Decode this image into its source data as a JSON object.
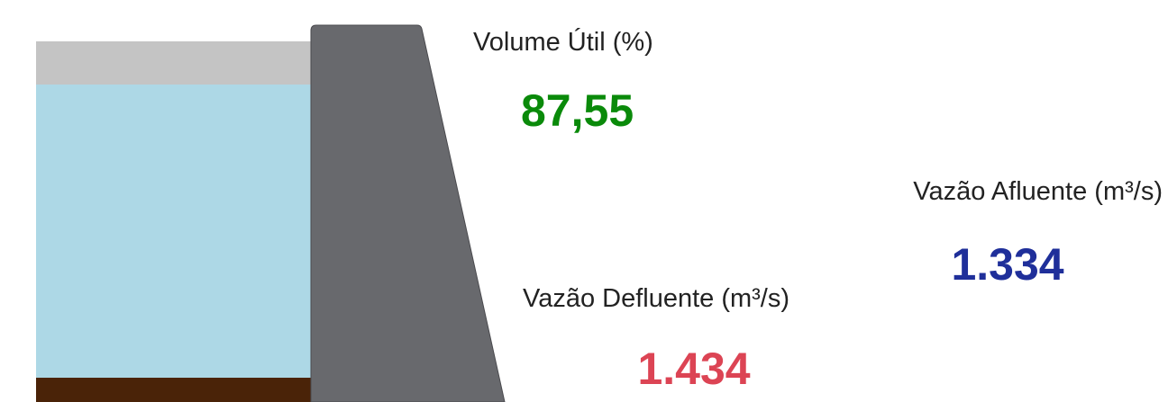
{
  "volume_util": {
    "label": "Volume Útil (%)",
    "value": "87,55"
  },
  "vazao_afluente": {
    "label": "Vazão Afluente (m³/s)",
    "value": "1.334"
  },
  "vazao_defluente": {
    "label": "Vazão Defluente (m³/s)",
    "value": "1.434"
  }
}
